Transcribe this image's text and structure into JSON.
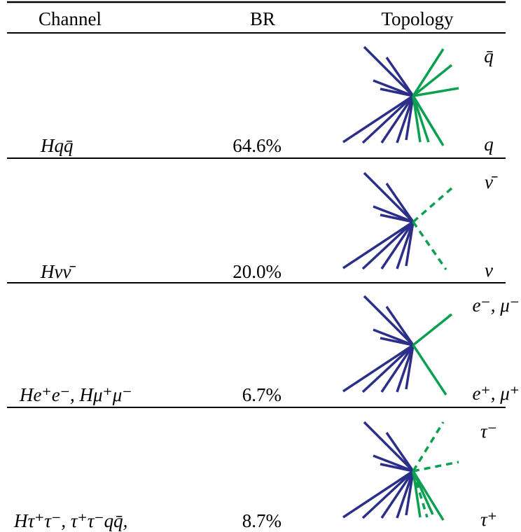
{
  "header": {
    "channel": "Channel",
    "br": "BR",
    "topology": "Topology"
  },
  "rows": [
    {
      "channel": "Hqq̄",
      "br": "64.6%",
      "top_label": "q̄",
      "bottom_label": "q"
    },
    {
      "channel": "Hνν̄",
      "br": "20.0%",
      "top_label": "ν̄",
      "bottom_label": "ν"
    },
    {
      "channel": "He⁺e⁻,  Hμ⁺μ⁻",
      "br": "6.7%",
      "top_label": "e⁻,  μ⁻",
      "bottom_label": "e⁺,  μ⁺"
    },
    {
      "channel": "Hτ⁺τ⁻,  τ⁺τ⁻qq̄,",
      "br": "8.7%",
      "top_label": "τ⁻",
      "bottom_label": "τ⁺"
    }
  ]
}
